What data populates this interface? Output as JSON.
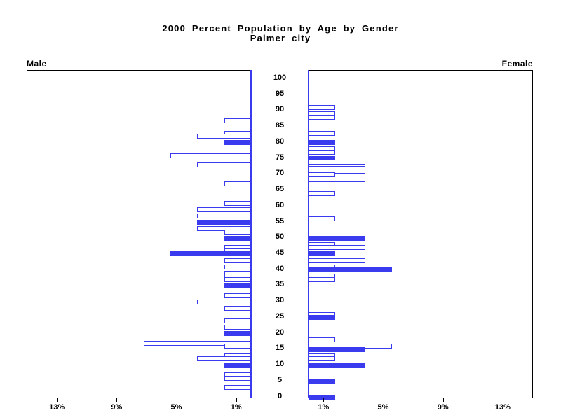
{
  "title": "2000 Percent Population by Age by Gender",
  "subtitle": "Palmer city",
  "colors": {
    "accent_blue": "#3a3aee",
    "frame": "#000000"
  },
  "chart_data": {
    "type": "bar",
    "variant": "population-pyramid",
    "title": "2000 Percent Population by Age by Gender",
    "subtitle": "Palmer city",
    "left_panel_label": "Male",
    "right_panel_label": "Female",
    "x_axis": {
      "unit": "percent",
      "range": [
        0,
        15
      ],
      "tick_values": [
        1,
        5,
        9,
        13
      ],
      "tick_labels": [
        "1%",
        "5%",
        "9%",
        "13%"
      ]
    },
    "age_axis": {
      "min": 0,
      "max": 100,
      "step": 5
    },
    "legend": "none",
    "grid": false,
    "bar_styles": {
      "outline": "white fill, blue border",
      "solid": "blue fill"
    },
    "male_bars": [
      {
        "age": 87,
        "pct": 1.8,
        "solid": false
      },
      {
        "age": 83,
        "pct": 1.8,
        "solid": false
      },
      {
        "age": 82,
        "pct": 3.6,
        "solid": false
      },
      {
        "age": 80,
        "pct": 1.8,
        "solid": true
      },
      {
        "age": 76,
        "pct": 5.4,
        "solid": false
      },
      {
        "age": 73,
        "pct": 3.6,
        "solid": false
      },
      {
        "age": 67,
        "pct": 1.8,
        "solid": false
      },
      {
        "age": 61,
        "pct": 1.8,
        "solid": false
      },
      {
        "age": 59,
        "pct": 3.6,
        "solid": false
      },
      {
        "age": 57,
        "pct": 3.6,
        "solid": false
      },
      {
        "age": 55,
        "pct": 3.6,
        "solid": true
      },
      {
        "age": 53,
        "pct": 3.6,
        "solid": false
      },
      {
        "age": 52,
        "pct": 1.8,
        "solid": false
      },
      {
        "age": 50,
        "pct": 1.8,
        "solid": true
      },
      {
        "age": 47,
        "pct": 1.8,
        "solid": false
      },
      {
        "age": 46,
        "pct": 1.8,
        "solid": false
      },
      {
        "age": 45,
        "pct": 5.4,
        "solid": true
      },
      {
        "age": 43,
        "pct": 1.8,
        "solid": false
      },
      {
        "age": 41,
        "pct": 1.8,
        "solid": false
      },
      {
        "age": 39,
        "pct": 1.8,
        "solid": false
      },
      {
        "age": 38,
        "pct": 1.8,
        "solid": false
      },
      {
        "age": 37,
        "pct": 1.8,
        "solid": false
      },
      {
        "age": 35,
        "pct": 1.8,
        "solid": true
      },
      {
        "age": 32,
        "pct": 1.8,
        "solid": false
      },
      {
        "age": 30,
        "pct": 3.6,
        "solid": false
      },
      {
        "age": 28,
        "pct": 1.8,
        "solid": false
      },
      {
        "age": 24,
        "pct": 1.8,
        "solid": false
      },
      {
        "age": 22,
        "pct": 1.8,
        "solid": false
      },
      {
        "age": 20,
        "pct": 1.8,
        "solid": true
      },
      {
        "age": 17,
        "pct": 7.2,
        "solid": false
      },
      {
        "age": 16,
        "pct": 1.8,
        "solid": false
      },
      {
        "age": 13,
        "pct": 1.8,
        "solid": false
      },
      {
        "age": 12,
        "pct": 3.6,
        "solid": false
      },
      {
        "age": 10,
        "pct": 1.8,
        "solid": true
      },
      {
        "age": 7,
        "pct": 1.8,
        "solid": false
      },
      {
        "age": 6,
        "pct": 1.8,
        "solid": false
      },
      {
        "age": 3,
        "pct": 1.8,
        "solid": false
      }
    ],
    "female_bars": [
      {
        "age": 91,
        "pct": 1.8,
        "solid": false
      },
      {
        "age": 89,
        "pct": 1.8,
        "solid": false
      },
      {
        "age": 88,
        "pct": 1.8,
        "solid": false
      },
      {
        "age": 83,
        "pct": 1.8,
        "solid": false
      },
      {
        "age": 80,
        "pct": 1.8,
        "solid": true
      },
      {
        "age": 78,
        "pct": 1.8,
        "solid": false
      },
      {
        "age": 77,
        "pct": 1.8,
        "solid": false
      },
      {
        "age": 75,
        "pct": 1.8,
        "solid": true
      },
      {
        "age": 74,
        "pct": 3.8,
        "solid": false
      },
      {
        "age": 72,
        "pct": 3.8,
        "solid": false
      },
      {
        "age": 71,
        "pct": 3.8,
        "solid": false
      },
      {
        "age": 70,
        "pct": 1.8,
        "solid": false
      },
      {
        "age": 67,
        "pct": 3.8,
        "solid": false
      },
      {
        "age": 64,
        "pct": 1.8,
        "solid": false
      },
      {
        "age": 56,
        "pct": 1.8,
        "solid": false
      },
      {
        "age": 50,
        "pct": 3.8,
        "solid": true
      },
      {
        "age": 48,
        "pct": 1.8,
        "solid": false
      },
      {
        "age": 47,
        "pct": 3.8,
        "solid": false
      },
      {
        "age": 45,
        "pct": 1.8,
        "solid": true
      },
      {
        "age": 43,
        "pct": 3.8,
        "solid": false
      },
      {
        "age": 41,
        "pct": 1.8,
        "solid": false
      },
      {
        "age": 40,
        "pct": 5.6,
        "solid": true
      },
      {
        "age": 38,
        "pct": 1.8,
        "solid": false
      },
      {
        "age": 37,
        "pct": 1.8,
        "solid": false
      },
      {
        "age": 26,
        "pct": 1.8,
        "solid": false
      },
      {
        "age": 25,
        "pct": 1.8,
        "solid": true
      },
      {
        "age": 18,
        "pct": 1.8,
        "solid": false
      },
      {
        "age": 16,
        "pct": 5.6,
        "solid": false
      },
      {
        "age": 15,
        "pct": 3.8,
        "solid": true
      },
      {
        "age": 13,
        "pct": 1.8,
        "solid": false
      },
      {
        "age": 12,
        "pct": 1.8,
        "solid": false
      },
      {
        "age": 10,
        "pct": 3.8,
        "solid": true
      },
      {
        "age": 8,
        "pct": 3.8,
        "solid": false
      },
      {
        "age": 5,
        "pct": 1.8,
        "solid": true
      },
      {
        "age": 0,
        "pct": 1.8,
        "solid": true
      }
    ]
  }
}
